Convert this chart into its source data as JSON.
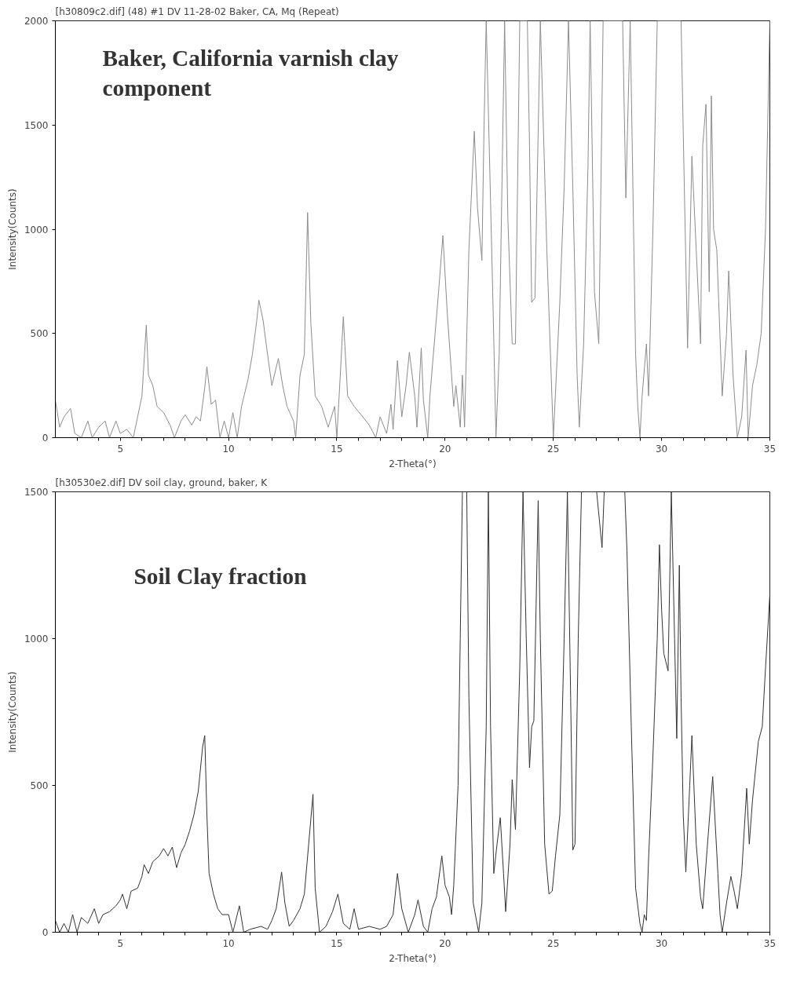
{
  "chart_data": [
    {
      "type": "line",
      "title": "[h30809c2.dif] (48) #1 DV 11-28-02 Baker, CA, Mq (Repeat)",
      "xlabel": "2-Theta(°)",
      "ylabel": "Intensity(Counts)",
      "annotations": [
        "Baker, California varnish clay\ncomponent"
      ],
      "xlim": [
        2,
        35
      ],
      "ylim": [
        0,
        2000
      ],
      "xticks": [
        {
          "value": 3,
          "label": null
        },
        {
          "value": 4,
          "label": null
        },
        5,
        {
          "value": 6,
          "label": null
        },
        {
          "value": 7,
          "label": null
        },
        {
          "value": 8,
          "label": null
        },
        {
          "value": 9,
          "label": null
        },
        10,
        {
          "value": 11,
          "label": null
        },
        {
          "value": 12,
          "label": null
        },
        {
          "value": 13,
          "label": null
        },
        {
          "value": 14,
          "label": null
        },
        15,
        {
          "value": 16,
          "label": null
        },
        {
          "value": 17,
          "label": null
        },
        {
          "value": 18,
          "label": null
        },
        {
          "value": 19,
          "label": null
        },
        20,
        {
          "value": 21,
          "label": null
        },
        {
          "value": 22,
          "label": null
        },
        {
          "value": 23,
          "label": null
        },
        {
          "value": 24,
          "label": null
        },
        25,
        {
          "value": 26,
          "label": null
        },
        {
          "value": 27,
          "label": null
        },
        {
          "value": 28,
          "label": null
        },
        {
          "value": 29,
          "label": null
        },
        30,
        {
          "value": 31,
          "label": null
        },
        {
          "value": 32,
          "label": null
        },
        {
          "value": 33,
          "label": null
        },
        {
          "value": 34,
          "label": null
        },
        35
      ],
      "yticks": [
        0,
        500,
        1000,
        1500,
        2000
      ],
      "grid": false,
      "series": [
        {
          "color": "#8c8c8c",
          "x": [
            2.0,
            2.2,
            2.4,
            2.7,
            2.9,
            3.2,
            3.5,
            3.7,
            4.0,
            4.3,
            4.5,
            4.8,
            5.0,
            5.3,
            5.6,
            5.8,
            6.0,
            6.2,
            6.3,
            6.5,
            6.7,
            7.0,
            7.3,
            7.5,
            7.8,
            8.0,
            8.3,
            8.5,
            8.7,
            8.9,
            9.0,
            9.2,
            9.4,
            9.6,
            9.8,
            10.0,
            10.2,
            10.4,
            10.6,
            10.9,
            11.1,
            11.3,
            11.4,
            11.6,
            11.8,
            12.0,
            12.3,
            12.5,
            12.7,
            13.0,
            13.1,
            13.3,
            13.5,
            13.65,
            13.8,
            14.0,
            14.3,
            14.6,
            14.9,
            15.0,
            15.15,
            15.3,
            15.5,
            15.8,
            16.2,
            16.5,
            16.8,
            17.0,
            17.3,
            17.5,
            17.6,
            17.8,
            18.0,
            18.2,
            18.35,
            18.6,
            18.7,
            18.9,
            19.0,
            19.2,
            19.3,
            19.5,
            19.7,
            19.9,
            20.1,
            20.2,
            20.4,
            20.5,
            20.7,
            20.8,
            20.9,
            21.0,
            21.1,
            21.35,
            21.5,
            21.7,
            21.8,
            21.9,
            22.2,
            22.35,
            22.5,
            22.75,
            22.9,
            23.1,
            23.25,
            23.45,
            23.8,
            23.9,
            24.0,
            24.15,
            24.4,
            24.7,
            24.9,
            25.0,
            25.3,
            25.5,
            25.7,
            25.9,
            26.1,
            26.2,
            26.4,
            26.6,
            26.7,
            26.9,
            27.1,
            27.3,
            27.6,
            28.2,
            28.35,
            28.55,
            28.8,
            28.9,
            29.0,
            29.1,
            29.3,
            29.4,
            29.6,
            29.8,
            30.4,
            30.9,
            31.05,
            31.2,
            31.4,
            31.6,
            31.8,
            31.9,
            32.05,
            32.2,
            32.3,
            32.4,
            32.55,
            32.8,
            33.0,
            33.1,
            33.3,
            33.5,
            33.7,
            33.9,
            34.0,
            34.2,
            34.4,
            34.6,
            34.8,
            35.0
          ],
          "values": [
            180,
            50,
            100,
            140,
            20,
            0,
            80,
            0,
            50,
            80,
            0,
            80,
            20,
            40,
            0,
            100,
            200,
            540,
            300,
            250,
            150,
            120,
            60,
            0,
            80,
            110,
            60,
            100,
            80,
            240,
            340,
            160,
            180,
            0,
            80,
            0,
            120,
            0,
            150,
            280,
            400,
            560,
            660,
            560,
            400,
            250,
            380,
            250,
            150,
            80,
            0,
            300,
            400,
            1080,
            550,
            200,
            150,
            50,
            150,
            0,
            280,
            580,
            200,
            150,
            100,
            60,
            0,
            100,
            20,
            160,
            40,
            370,
            100,
            250,
            410,
            200,
            50,
            430,
            180,
            0,
            200,
            450,
            700,
            970,
            600,
            450,
            150,
            250,
            50,
            300,
            50,
            480,
            900,
            1470,
            1100,
            850,
            1500,
            2000,
            700,
            0,
            400,
            2000,
            1050,
            450,
            450,
            2000,
            2000,
            1400,
            650,
            670,
            2000,
            900,
            300,
            0,
            650,
            1200,
            2000,
            1200,
            300,
            50,
            450,
            1300,
            2000,
            700,
            450,
            2000,
            2000,
            2000,
            1150,
            2000,
            400,
            150,
            0,
            200,
            450,
            200,
            1000,
            2000,
            2000,
            2000,
            1200,
            430,
            1350,
            900,
            450,
            1400,
            1600,
            700,
            1640,
            1000,
            900,
            200,
            500,
            800,
            300,
            0,
            100,
            420,
            0,
            250,
            350,
            500,
            1000,
            2000
          ]
        }
      ]
    },
    {
      "type": "line",
      "title": "[h30530e2.dif] DV soil clay, ground, baker, K",
      "xlabel": "2-Theta(°)",
      "ylabel": "Intensity(Counts)",
      "annotations": [
        "Soil Clay fraction"
      ],
      "xlim": [
        2,
        35
      ],
      "ylim": [
        0,
        1500
      ],
      "xticks": [
        {
          "value": 3,
          "label": null
        },
        {
          "value": 4,
          "label": null
        },
        5,
        {
          "value": 6,
          "label": null
        },
        {
          "value": 7,
          "label": null
        },
        {
          "value": 8,
          "label": null
        },
        {
          "value": 9,
          "label": null
        },
        10,
        {
          "value": 11,
          "label": null
        },
        {
          "value": 12,
          "label": null
        },
        {
          "value": 13,
          "label": null
        },
        {
          "value": 14,
          "label": null
        },
        15,
        {
          "value": 16,
          "label": null
        },
        {
          "value": 17,
          "label": null
        },
        {
          "value": 18,
          "label": null
        },
        {
          "value": 19,
          "label": null
        },
        20,
        {
          "value": 21,
          "label": null
        },
        {
          "value": 22,
          "label": null
        },
        {
          "value": 23,
          "label": null
        },
        {
          "value": 24,
          "label": null
        },
        25,
        {
          "value": 26,
          "label": null
        },
        {
          "value": 27,
          "label": null
        },
        {
          "value": 28,
          "label": null
        },
        {
          "value": 29,
          "label": null
        },
        30,
        {
          "value": 31,
          "label": null
        },
        {
          "value": 32,
          "label": null
        },
        {
          "value": 33,
          "label": null
        },
        {
          "value": 34,
          "label": null
        },
        35
      ],
      "yticks": [
        0,
        500,
        1000,
        1500
      ],
      "grid": false,
      "series": [
        {
          "color": "#333333",
          "x": [
            2.0,
            2.2,
            2.4,
            2.6,
            2.8,
            3.0,
            3.2,
            3.5,
            3.8,
            4.0,
            4.2,
            4.5,
            4.8,
            5.0,
            5.1,
            5.3,
            5.5,
            5.8,
            6.0,
            6.1,
            6.3,
            6.5,
            6.8,
            7.0,
            7.2,
            7.4,
            7.6,
            7.8,
            8.0,
            8.2,
            8.4,
            8.6,
            8.8,
            8.9,
            9.0,
            9.1,
            9.3,
            9.5,
            9.7,
            10.0,
            10.2,
            10.5,
            10.7,
            11.0,
            11.5,
            11.8,
            12.0,
            12.2,
            12.45,
            12.6,
            12.8,
            13.0,
            13.3,
            13.5,
            13.7,
            13.9,
            14.0,
            14.2,
            14.5,
            14.8,
            15.05,
            15.3,
            15.6,
            15.8,
            16.0,
            16.5,
            17.0,
            17.3,
            17.6,
            17.8,
            18.0,
            18.3,
            18.6,
            18.75,
            19.0,
            19.2,
            19.4,
            19.6,
            19.85,
            20.0,
            20.2,
            20.3,
            20.4,
            20.6,
            20.7,
            20.8,
            21.0,
            21.1,
            21.3,
            21.55,
            21.7,
            21.9,
            22.0,
            22.1,
            22.25,
            22.4,
            22.55,
            22.7,
            22.8,
            23.0,
            23.1,
            23.25,
            23.45,
            23.6,
            23.75,
            23.9,
            24.0,
            24.1,
            24.3,
            24.4,
            24.6,
            24.8,
            24.95,
            25.1,
            25.3,
            25.5,
            25.65,
            25.8,
            25.9,
            26.0,
            26.15,
            26.3,
            27.0,
            27.25,
            27.35,
            28.3,
            28.4,
            28.6,
            28.8,
            29.0,
            29.1,
            29.2,
            29.3,
            29.4,
            29.6,
            29.8,
            29.9,
            30.0,
            30.1,
            30.3,
            30.45,
            30.6,
            30.7,
            30.82,
            30.9,
            31.0,
            31.12,
            31.3,
            31.4,
            31.6,
            31.8,
            31.9,
            32.1,
            32.36,
            32.6,
            32.7,
            32.8,
            33.0,
            33.2,
            33.35,
            33.5,
            33.7,
            33.93,
            34.05,
            34.2,
            34.47,
            34.65,
            34.8,
            35.0
          ],
          "values": [
            40,
            0,
            30,
            0,
            60,
            0,
            50,
            30,
            80,
            30,
            60,
            70,
            90,
            110,
            130,
            80,
            140,
            150,
            190,
            230,
            200,
            240,
            260,
            285,
            260,
            290,
            220,
            270,
            300,
            345,
            400,
            480,
            630,
            670,
            400,
            200,
            130,
            80,
            60,
            60,
            0,
            90,
            0,
            10,
            20,
            10,
            40,
            80,
            205,
            100,
            20,
            40,
            80,
            130,
            300,
            470,
            150,
            0,
            20,
            70,
            130,
            30,
            10,
            80,
            10,
            20,
            10,
            20,
            60,
            200,
            80,
            0,
            60,
            110,
            20,
            0,
            80,
            120,
            260,
            160,
            120,
            60,
            160,
            500,
            1000,
            1500,
            1500,
            800,
            100,
            0,
            100,
            700,
            1500,
            700,
            200,
            300,
            390,
            200,
            70,
            300,
            520,
            350,
            900,
            1500,
            1000,
            560,
            700,
            720,
            1470,
            1000,
            300,
            130,
            140,
            260,
            400,
            1000,
            1500,
            800,
            280,
            300,
            1000,
            1500,
            1500,
            1310,
            1500,
            1500,
            1300,
            700,
            150,
            30,
            0,
            60,
            40,
            250,
            600,
            1000,
            1320,
            1100,
            950,
            890,
            1500,
            1000,
            660,
            1250,
            800,
            400,
            205,
            500,
            670,
            300,
            120,
            80,
            280,
            530,
            200,
            60,
            0,
            100,
            190,
            140,
            80,
            200,
            490,
            300,
            450,
            650,
            700,
            900,
            1150
          ]
        }
      ]
    }
  ]
}
